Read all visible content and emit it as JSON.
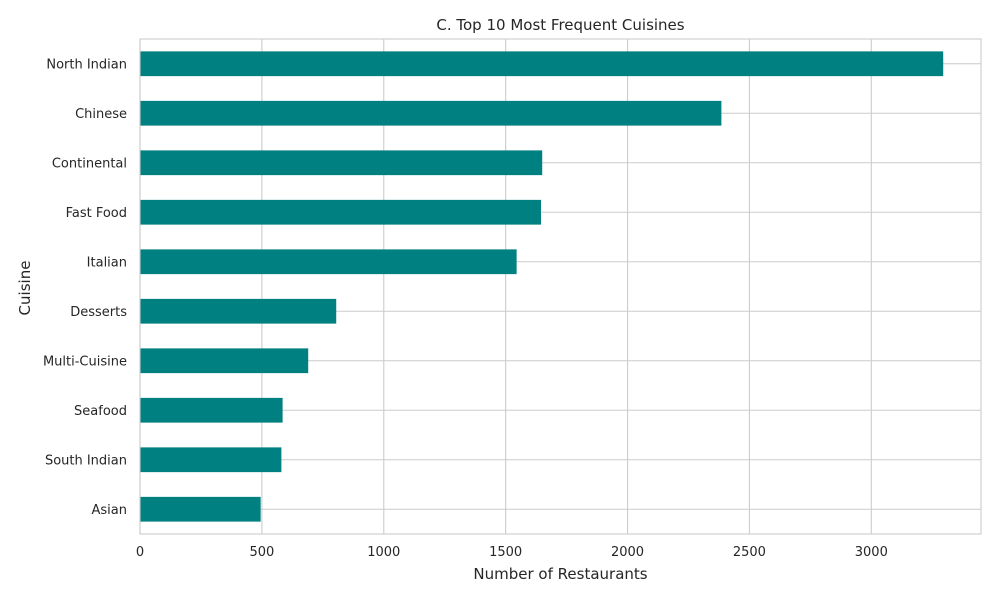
{
  "chart_data": {
    "type": "bar",
    "orientation": "horizontal",
    "title": "C. Top 10 Most Frequent Cuisines",
    "xlabel": "Number of Restaurants",
    "ylabel": "Cuisine",
    "categories": [
      "North Indian",
      "Chinese",
      "Continental",
      "Fast Food",
      "Italian",
      "Desserts",
      "Multi-Cuisine",
      "Seafood",
      "South Indian",
      "Asian"
    ],
    "values": [
      3295,
      2385,
      1650,
      1645,
      1545,
      805,
      690,
      585,
      580,
      495
    ],
    "xlim": [
      0,
      3450
    ],
    "xticks": [
      0,
      500,
      1000,
      1500,
      2000,
      2500,
      3000
    ],
    "xtick_labels": [
      "0",
      "500",
      "1000",
      "1500",
      "2000",
      "2500",
      "3000"
    ],
    "grid": true,
    "bar_color": "#008080",
    "grid_color": "#cccccc",
    "text_color": "#262626"
  }
}
